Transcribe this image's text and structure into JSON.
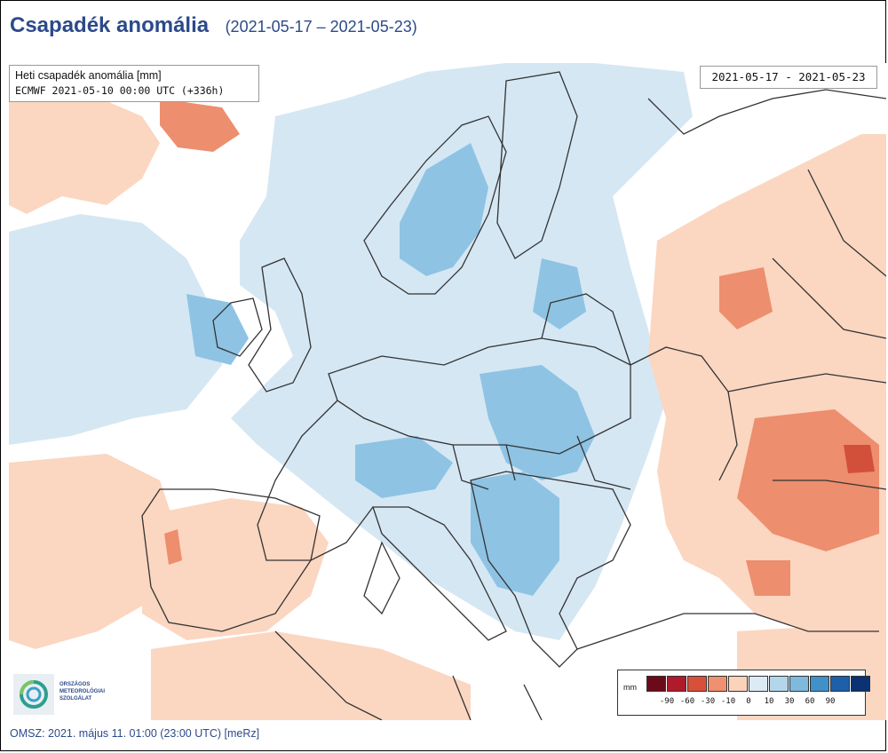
{
  "header": {
    "title": "Csapadék anomália",
    "date_range": "(2021-05-17 – 2021-05-23)"
  },
  "info_box": {
    "line1": "Heti csapadék anomália [mm]",
    "line2": "ECMWF 2021-05-10 00:00 UTC (+336h)"
  },
  "date_box": {
    "text": "2021-05-17 - 2021-05-23"
  },
  "legend": {
    "unit": "mm",
    "colors": [
      "#6d0a1a",
      "#b01a2a",
      "#d9503a",
      "#ef9070",
      "#fbd3bb",
      "#dbeaf4",
      "#b3d6ea",
      "#7fbadd",
      "#4290c8",
      "#1d5fa8",
      "#0b3272"
    ],
    "tick_labels": [
      "-90",
      "-60",
      "-30",
      "-10",
      "0",
      "10",
      "30",
      "60",
      "90"
    ]
  },
  "logo": {
    "lines": [
      "Országos",
      "Meteorológiai",
      "Szolgálat"
    ],
    "icon": "swirl-logo-icon"
  },
  "footer": {
    "text": "OMSZ: 2021. május 11. 01:00 (23:00 UTC)  [meRz]"
  },
  "map": {
    "colors": {
      "sea": "#ffffff",
      "wet_light": "#d5e7f3",
      "wet_medium": "#8ec3e3",
      "dry_light": "#fbd6c1",
      "dry_medium": "#ed8e6e",
      "dry_strong": "#d2503a",
      "border": "#333333"
    }
  }
}
